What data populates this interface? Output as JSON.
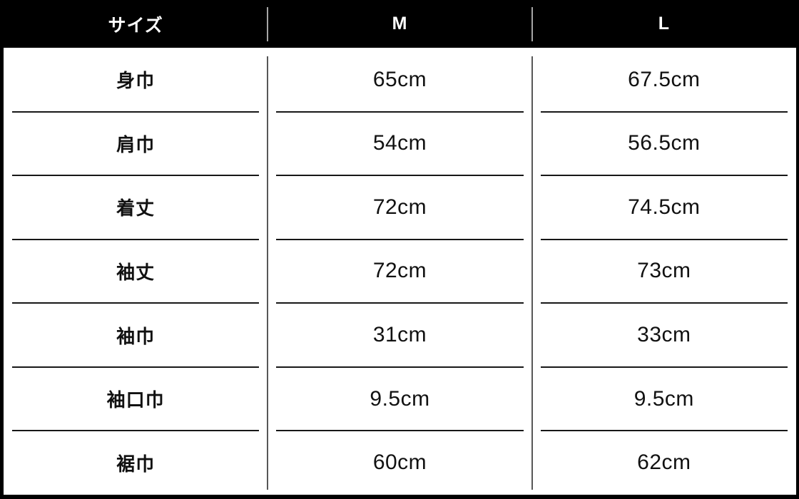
{
  "chart_data": {
    "type": "table",
    "title": "サイズ",
    "columns": [
      "サイズ",
      "M",
      "L"
    ],
    "rows": [
      [
        "身巾",
        "65cm",
        "67.5cm"
      ],
      [
        "肩巾",
        "54cm",
        "56.5cm"
      ],
      [
        "着丈",
        "72cm",
        "74.5cm"
      ],
      [
        "袖丈",
        "72cm",
        "73cm"
      ],
      [
        "袖巾",
        "31cm",
        "33cm"
      ],
      [
        "袖口巾",
        "9.5cm",
        "9.5cm"
      ],
      [
        "裾巾",
        "60cm",
        "62cm"
      ]
    ],
    "layout": {
      "header_style": "black background, white bold text",
      "grid": "thin gray column dividers, short black row separators with gaps at joints",
      "legend_position": "none"
    }
  },
  "table": {
    "header": {
      "cols": [
        "サイズ",
        "M",
        "L"
      ]
    },
    "rows": [
      {
        "label": "身巾",
        "m": "65cm",
        "l": "67.5cm"
      },
      {
        "label": "肩巾",
        "m": "54cm",
        "l": "56.5cm"
      },
      {
        "label": "着丈",
        "m": "72cm",
        "l": "74.5cm"
      },
      {
        "label": "袖丈",
        "m": "72cm",
        "l": "73cm"
      },
      {
        "label": "袖巾",
        "m": "31cm",
        "l": "33cm"
      },
      {
        "label": "袖口巾",
        "m": "9.5cm",
        "l": "9.5cm"
      },
      {
        "label": "裾巾",
        "m": "60cm",
        "l": "62cm"
      }
    ]
  },
  "colors": {
    "header_bg": "#000000",
    "header_text": "#ffffff",
    "body_bg": "#ffffff",
    "body_text": "#111111",
    "header_divider": "#a6a6a6",
    "body_divider": "#575757",
    "row_separator": "#171717",
    "outer_border": "#000000"
  }
}
